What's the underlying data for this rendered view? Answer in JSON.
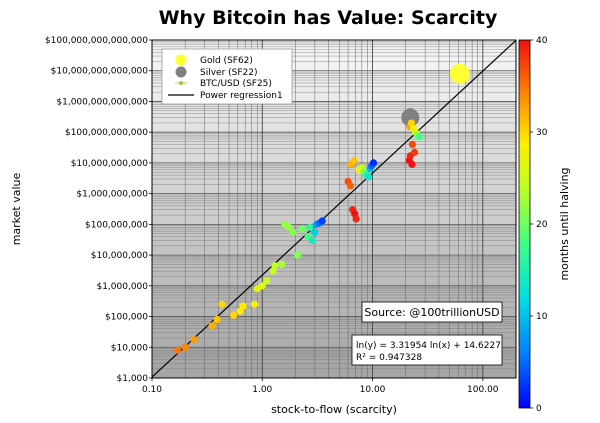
{
  "chart_data": {
    "type": "scatter",
    "title": "Why Bitcoin has Value: Scarcity",
    "xlabel": "stock-to-flow (scarcity)",
    "ylabel": "market value",
    "xscale": "log",
    "yscale": "log",
    "xlim": [
      0.1,
      200
    ],
    "ylim": [
      1000,
      100000000000000
    ],
    "x_ticks": [
      {
        "value": 0.1,
        "label": "0.10"
      },
      {
        "value": 1,
        "label": "1.00"
      },
      {
        "value": 10,
        "label": "10.00"
      },
      {
        "value": 100,
        "label": "100.00"
      }
    ],
    "y_ticks": [
      {
        "value": 1000,
        "label": "$1,000"
      },
      {
        "value": 10000,
        "label": "$10,000"
      },
      {
        "value": 100000,
        "label": "$100,000"
      },
      {
        "value": 1000000,
        "label": "$1,000,000"
      },
      {
        "value": 10000000,
        "label": "$10,000,000"
      },
      {
        "value": 100000000,
        "label": "$100,000,000"
      },
      {
        "value": 1000000000,
        "label": "$1,000,000,000"
      },
      {
        "value": 10000000000,
        "label": "$10,000,000,000"
      },
      {
        "value": 100000000000,
        "label": "$100,000,000,000"
      },
      {
        "value": 1000000000000,
        "label": "$1,000,000,000,000"
      },
      {
        "value": 10000000000000,
        "label": "$10,000,000,000,000"
      },
      {
        "value": 100000000000000,
        "label": "$100,000,000,000,000"
      }
    ],
    "grid": true,
    "legend_position": "top-left",
    "legend": [
      {
        "label": "Gold (SF62)",
        "color": "#ffff33",
        "marker": "circle-large"
      },
      {
        "label": "Silver (SF22)",
        "color": "#808080",
        "marker": "circle-large"
      },
      {
        "label": "BTC/USD (SF25)",
        "color": "#9acd32",
        "marker": "circle-small"
      },
      {
        "label": "Power regression1",
        "color": "#000000",
        "marker": "line"
      }
    ],
    "colorbar": {
      "label": "months until halving",
      "min": 0,
      "max": 40,
      "ticks": [
        {
          "value": 0,
          "label": "0"
        },
        {
          "value": 10,
          "label": "10"
        },
        {
          "value": 20,
          "label": "20"
        },
        {
          "value": 30,
          "label": "30"
        },
        {
          "value": 40,
          "label": "40"
        }
      ]
    },
    "regression": {
      "slope": 3.31954,
      "intercept": 14.6227,
      "equation": "ln(y) = 3.31954 ln(x) + 14.6227",
      "r2": "R² = 0.947328"
    },
    "source_text": "Source: @100trillionUSD",
    "gold": {
      "x": 62,
      "y": 8000000000000,
      "color": "#ffff33"
    },
    "silver": {
      "x": 22,
      "y": 300000000000,
      "color": "#808080"
    },
    "btc_points": [
      {
        "x": 0.17,
        "y": 8000,
        "m": 35
      },
      {
        "x": 0.2,
        "y": 10000,
        "m": 34
      },
      {
        "x": 0.24,
        "y": 18000,
        "m": 33
      },
      {
        "x": 0.35,
        "y": 50000,
        "m": 32
      },
      {
        "x": 0.39,
        "y": 80000,
        "m": 31
      },
      {
        "x": 0.43,
        "y": 250000,
        "m": 30
      },
      {
        "x": 0.55,
        "y": 110000,
        "m": 30
      },
      {
        "x": 0.63,
        "y": 150000,
        "m": 29
      },
      {
        "x": 0.67,
        "y": 220000,
        "m": 29
      },
      {
        "x": 0.85,
        "y": 250000,
        "m": 28
      },
      {
        "x": 0.9,
        "y": 800000,
        "m": 27
      },
      {
        "x": 1.0,
        "y": 1000000,
        "m": 26
      },
      {
        "x": 1.1,
        "y": 1500000,
        "m": 25
      },
      {
        "x": 1.25,
        "y": 3000000,
        "m": 24
      },
      {
        "x": 1.3,
        "y": 4500000,
        "m": 24
      },
      {
        "x": 1.5,
        "y": 5000000,
        "m": 23
      },
      {
        "x": 1.6,
        "y": 100000000,
        "m": 22
      },
      {
        "x": 1.75,
        "y": 80000000,
        "m": 22
      },
      {
        "x": 2.1,
        "y": 10000000,
        "m": 21
      },
      {
        "x": 2.3,
        "y": 70000000,
        "m": 20
      },
      {
        "x": 2.6,
        "y": 40000000,
        "m": 18
      },
      {
        "x": 2.7,
        "y": 80000000,
        "m": 16
      },
      {
        "x": 2.85,
        "y": 30000000,
        "m": 14
      },
      {
        "x": 3.0,
        "y": 55000000,
        "m": 11
      },
      {
        "x": 3.1,
        "y": 100000000,
        "m": 8
      },
      {
        "x": 3.3,
        "y": 110000000,
        "m": 5
      },
      {
        "x": 3.5,
        "y": 130000000,
        "m": 3
      },
      {
        "x": 1.9,
        "y": 55000000,
        "m": 21
      },
      {
        "x": 6.0,
        "y": 2500000000,
        "m": 37
      },
      {
        "x": 6.3,
        "y": 1800000000,
        "m": 36
      },
      {
        "x": 6.6,
        "y": 300000000,
        "m": 39
      },
      {
        "x": 6.9,
        "y": 220000000,
        "m": 40
      },
      {
        "x": 7.1,
        "y": 150000000,
        "m": 39
      },
      {
        "x": 6.4,
        "y": 9000000000,
        "m": 32
      },
      {
        "x": 6.8,
        "y": 12000000000,
        "m": 31
      },
      {
        "x": 7.5,
        "y": 6000000000,
        "m": 28
      },
      {
        "x": 8.0,
        "y": 7000000000,
        "m": 24
      },
      {
        "x": 8.4,
        "y": 5000000000,
        "m": 20
      },
      {
        "x": 8.8,
        "y": 4000000000,
        "m": 16
      },
      {
        "x": 9.2,
        "y": 3500000000,
        "m": 13
      },
      {
        "x": 9.5,
        "y": 6500000000,
        "m": 9
      },
      {
        "x": 9.8,
        "y": 8000000000,
        "m": 5
      },
      {
        "x": 10.2,
        "y": 10000000000,
        "m": 2
      },
      {
        "x": 21.5,
        "y": 12000000000,
        "m": 40
      },
      {
        "x": 22.0,
        "y": 17000000000,
        "m": 39
      },
      {
        "x": 23.0,
        "y": 40000000000,
        "m": 37
      },
      {
        "x": 21.8,
        "y": 150000000000,
        "m": 33
      },
      {
        "x": 22.5,
        "y": 200000000000,
        "m": 30
      },
      {
        "x": 23.5,
        "y": 130000000000,
        "m": 28
      },
      {
        "x": 24.5,
        "y": 100000000000,
        "m": 26
      },
      {
        "x": 25.5,
        "y": 85000000000,
        "m": 22
      },
      {
        "x": 26.5,
        "y": 70000000000,
        "m": 18
      },
      {
        "x": 24.0,
        "y": 22000000000,
        "m": 38
      },
      {
        "x": 22.8,
        "y": 9000000000,
        "m": 40
      }
    ]
  }
}
